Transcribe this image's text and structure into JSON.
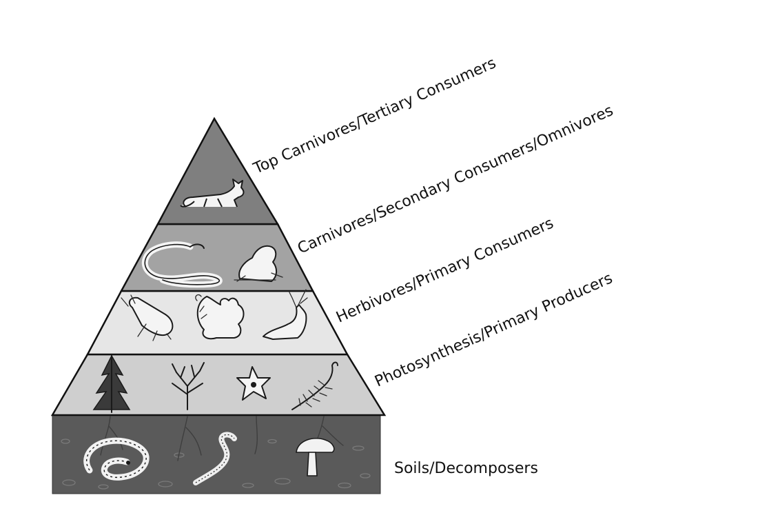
{
  "diagram": {
    "tiers": [
      {
        "id": "tertiary",
        "label": "Top Carnivores/Tertiary Consumers",
        "fill": "#7f7f7f",
        "organisms": [
          "fox"
        ]
      },
      {
        "id": "secondary",
        "label": "Carnivores/Secondary Consumers/Omnivores",
        "fill": "#a3a3a3",
        "organisms": [
          "snake",
          "frog"
        ]
      },
      {
        "id": "primary",
        "label": "Herbivores/Primary Consumers",
        "fill": "#e6e6e6",
        "organisms": [
          "beetle",
          "squirrel",
          "deer"
        ]
      },
      {
        "id": "producers",
        "label": "Photosynthesis/Primary Producers",
        "fill": "#cfcfcf",
        "organisms": [
          "conifer",
          "bare-tree",
          "flower",
          "fern"
        ]
      },
      {
        "id": "decomposers",
        "label": "Soils/Decomposers",
        "fill": "#555555",
        "organisms": [
          "millipede",
          "worm",
          "mushroom"
        ]
      }
    ],
    "outline_color": "#111111"
  }
}
